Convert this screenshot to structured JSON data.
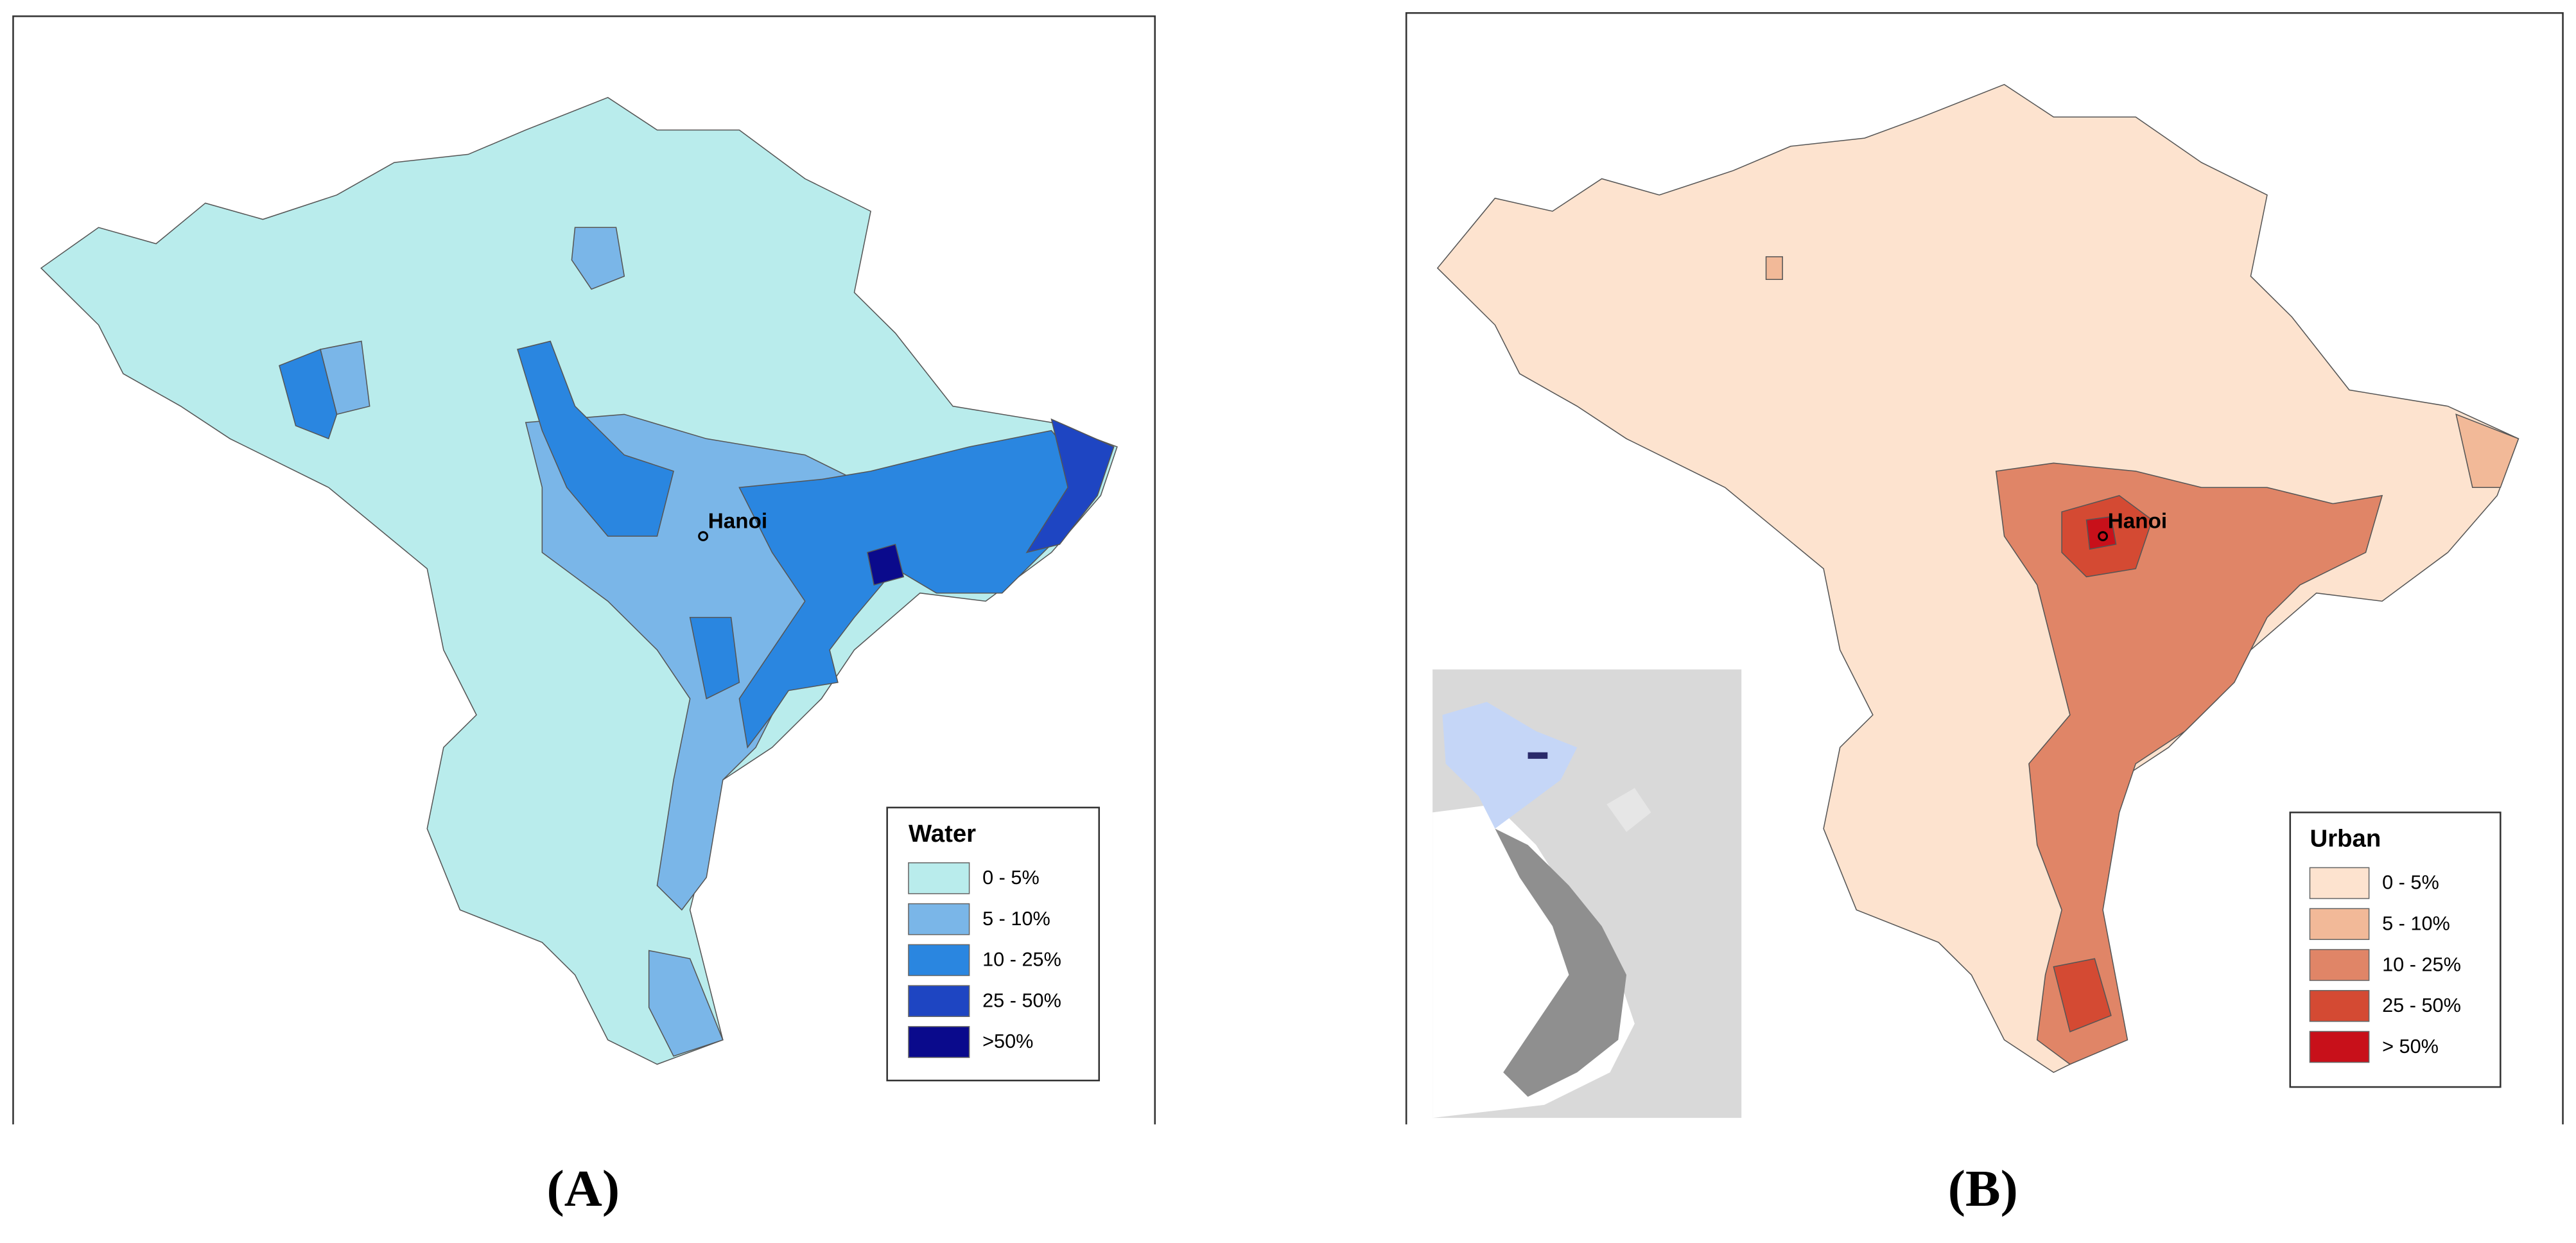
{
  "panels": [
    {
      "label": "(A)",
      "city": "Hanoi",
      "legend": {
        "title": "Water",
        "items": [
          {
            "label": "0 - 5%",
            "color": "#b9ecec"
          },
          {
            "label": "5 - 10%",
            "color": "#7ab6e8"
          },
          {
            "label": "10 - 25%",
            "color": "#2a86e0"
          },
          {
            "label": "25 - 50%",
            "color": "#1e45c2"
          },
          {
            "label": ">50%",
            "color": "#0a0a8c"
          }
        ]
      }
    },
    {
      "label": "(B)",
      "city": "Hanoi",
      "legend": {
        "title": "Urban",
        "items": [
          {
            "label": "0 - 5%",
            "color": "#fde3cf"
          },
          {
            "label": "5 - 10%",
            "color": "#f2b998"
          },
          {
            "label": "10 - 25%",
            "color": "#e08567"
          },
          {
            "label": "25 - 50%",
            "color": "#d44a33"
          },
          {
            "label": "> 50%",
            "color": "#c8101a"
          }
        ]
      }
    }
  ]
}
